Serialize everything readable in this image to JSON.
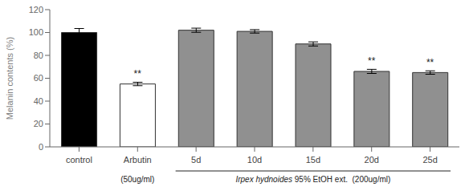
{
  "chart_data": {
    "type": "bar",
    "categories": [
      "control",
      "Arbutin",
      "5d",
      "10d",
      "15d",
      "20d",
      "25d"
    ],
    "values": [
      100,
      55,
      102,
      101,
      90,
      66,
      65
    ],
    "errors": [
      3.5,
      1.5,
      1.8,
      1.5,
      1.8,
      1.8,
      1.5
    ],
    "colors": [
      "black",
      "white",
      "#909090",
      "#909090",
      "#909090",
      "#909090",
      "#909090"
    ],
    "ylabel": "Melanin contents (%)",
    "ylim": [
      0,
      120
    ],
    "yticks": [
      0,
      20,
      40,
      60,
      80,
      100,
      120
    ],
    "sig_labels": [
      null,
      "**",
      null,
      null,
      null,
      "**",
      "**"
    ],
    "annotations": [
      {
        "text": "(50ug/ml)",
        "category": "Arbutin"
      },
      {
        "italic": "Irpex hydnoides",
        "text": " 95% EtOH ext.  (200ug/ml)",
        "from": "5d",
        "to": "25d"
      }
    ],
    "grid": false
  }
}
